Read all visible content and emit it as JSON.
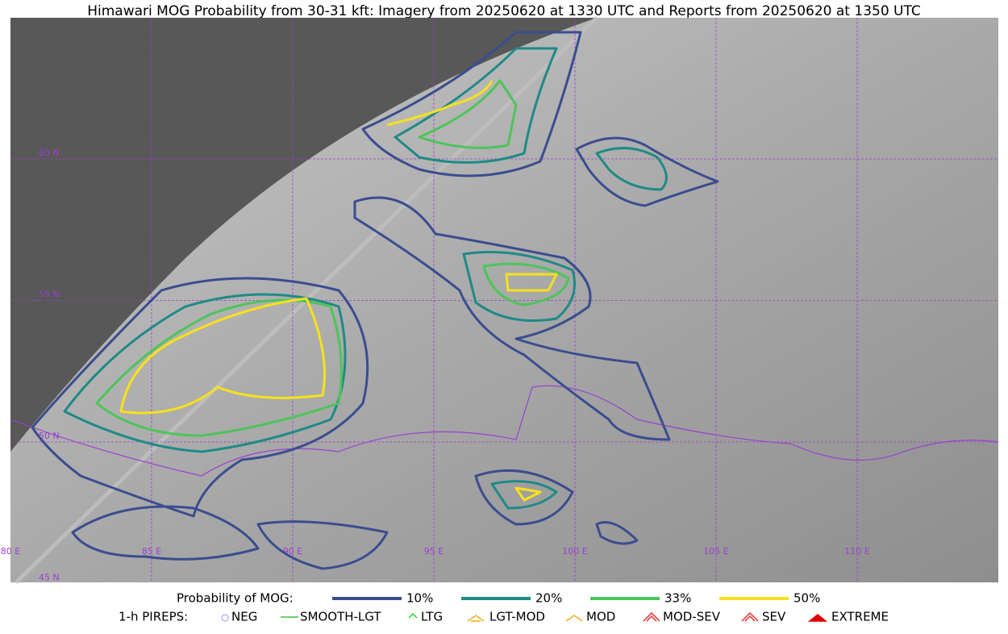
{
  "title": "Himawari MOG Probability from 30-31 kft: Imagery from 20250620 at 1330 UTC and Reports from 20250620 at 1350 UTC",
  "map": {
    "lat_labels": [
      "60 N",
      "55 N",
      "50 N",
      "45 N"
    ],
    "lon_labels": [
      "80 E",
      "85 E",
      "90 E",
      "95 E",
      "100 E",
      "105 E",
      "110 E"
    ]
  },
  "legend": {
    "probability": {
      "title": "Probability of MOG:",
      "items": [
        {
          "label": "10%",
          "color": "#3a4d8f"
        },
        {
          "label": "20%",
          "color": "#1f8a86"
        },
        {
          "label": "33%",
          "color": "#4dc45a"
        },
        {
          "label": "50%",
          "color": "#f7e11b"
        }
      ]
    },
    "pireps": {
      "title": "1-h PIREPS:",
      "items": [
        "NEG",
        "SMOOTH-LGT",
        "LTG",
        "LGT-MOD",
        "MOD",
        "MOD-SEV",
        "SEV",
        "EXTREME"
      ]
    }
  }
}
